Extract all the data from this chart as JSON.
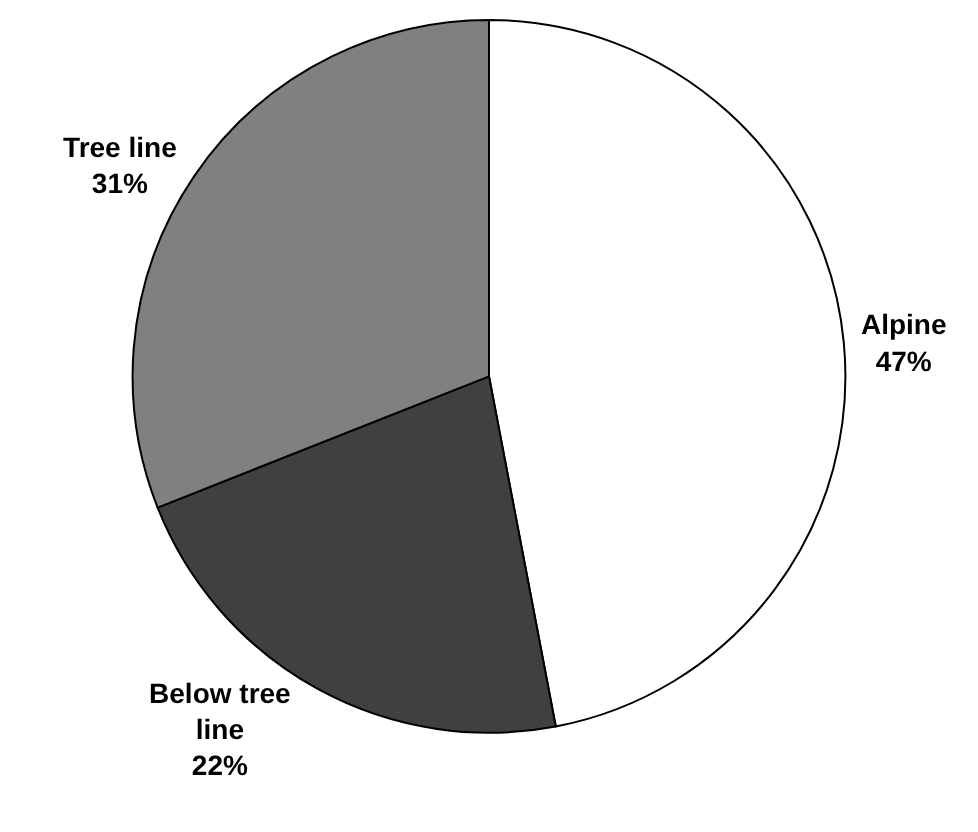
{
  "chart_data": {
    "type": "pie",
    "categories": [
      "Alpine",
      "Below tree line",
      "Tree line"
    ],
    "values": [
      47,
      22,
      31
    ],
    "colors": [
      "#ffffff",
      "#404040",
      "#808080"
    ],
    "value_labels": [
      "47%",
      "22%",
      "31%"
    ],
    "legend": false
  }
}
